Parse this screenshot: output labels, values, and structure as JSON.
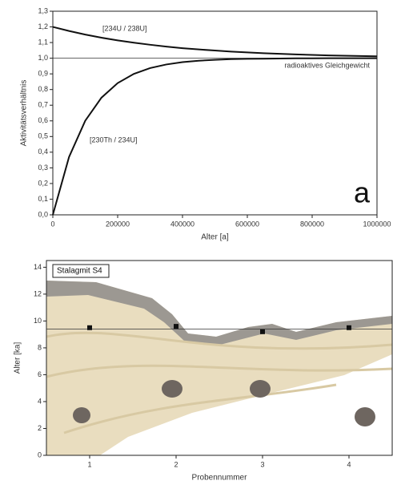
{
  "chart_data": [
    {
      "type": "line",
      "x_label": "Alter [a]",
      "y_label": "Aktivitätsverhältnis",
      "x": [
        0,
        50000,
        100000,
        150000,
        200000,
        250000,
        300000,
        350000,
        400000,
        450000,
        500000,
        550000,
        600000,
        650000,
        700000,
        750000,
        800000,
        850000,
        900000,
        950000,
        1000000
      ],
      "series": [
        {
          "name": "[234U / 238U]",
          "color": "#111111",
          "values": [
            1.2,
            1.174,
            1.151,
            1.131,
            1.114,
            1.099,
            1.086,
            1.074,
            1.064,
            1.056,
            1.049,
            1.042,
            1.037,
            1.032,
            1.028,
            1.024,
            1.021,
            1.018,
            1.016,
            1.014,
            1.012
          ]
        },
        {
          "name": "[230Th / 234U]",
          "color": "#111111",
          "values": [
            0,
            0.369,
            0.601,
            0.748,
            0.841,
            0.9,
            0.937,
            0.96,
            0.975,
            0.984,
            0.99,
            0.994,
            0.996,
            0.997,
            0.998,
            0.999,
            0.999,
            1.0,
            1.0,
            1.0,
            1.0
          ]
        }
      ],
      "reference_line": 1.0,
      "annotations": [
        "radioaktives Gleichgewicht",
        "a"
      ],
      "xlim": [
        0,
        1000000
      ],
      "xticks": [
        0,
        200000,
        400000,
        600000,
        800000,
        1000000
      ],
      "ylim": [
        0,
        1.3
      ],
      "yticks": [
        {
          "value": 0,
          "label": "0,0"
        },
        {
          "value": 0.1,
          "label": "0,1"
        },
        {
          "value": 0.2,
          "label": "0,2"
        },
        {
          "value": 0.3,
          "label": "0,3"
        },
        {
          "value": 0.4,
          "label": "0,4"
        },
        {
          "value": 0.5,
          "label": "0,5"
        },
        {
          "value": 0.6,
          "label": "0,6"
        },
        {
          "value": 0.7,
          "label": "0,7"
        },
        {
          "value": 0.8,
          "label": "0,8"
        },
        {
          "value": 0.9,
          "label": "0,9"
        },
        {
          "value": 1.0,
          "label": "1,0"
        },
        {
          "value": 1.1,
          "label": "1,1"
        },
        {
          "value": 1.2,
          "label": "1,2"
        },
        {
          "value": 1.3,
          "label": "1,3"
        }
      ]
    },
    {
      "type": "scatter",
      "x_label": "Probennummer",
      "y_label": "Alter [ka]",
      "legend": "Stalagmit S4",
      "x": [
        1,
        2,
        3,
        4
      ],
      "series": [
        {
          "name": "Stalagmit S4",
          "color": "#111111",
          "values": [
            9.5,
            9.6,
            9.2,
            9.5
          ]
        }
      ],
      "reference_line": 9.4,
      "xlim": [
        0.5,
        4.5
      ],
      "xticks": [
        1,
        2,
        3,
        4
      ],
      "ylim": [
        0,
        14.5
      ],
      "yticks": [
        0,
        2,
        4,
        6,
        8,
        10,
        12,
        14
      ]
    }
  ]
}
